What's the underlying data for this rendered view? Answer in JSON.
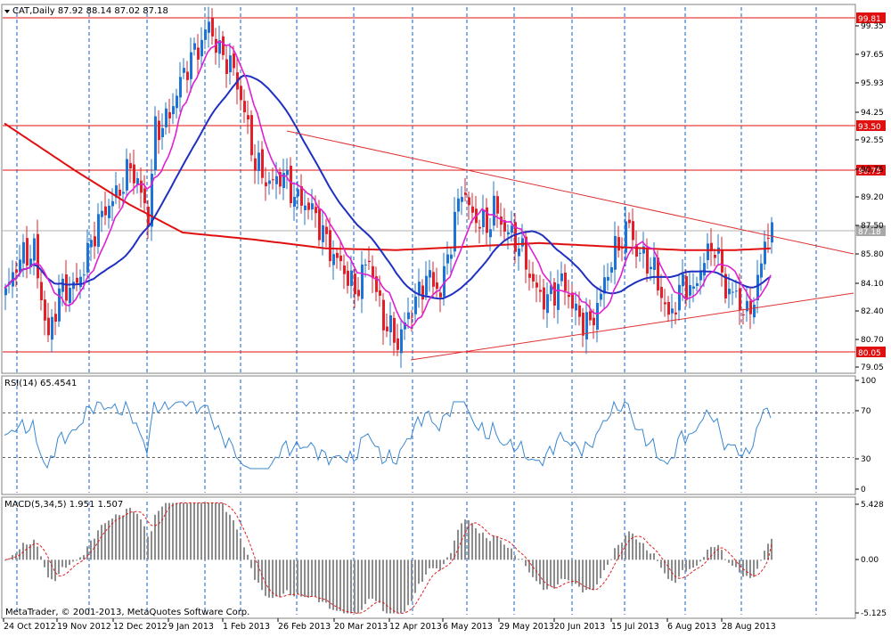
{
  "main": {
    "header": "CAT,Daily  87.92 88.14 87.02 87.18",
    "copyright": "MetaTrader, © 2001-2013, MetaQuotes Software Corp."
  },
  "colors": {
    "bull": "#1e74d6",
    "bear": "#e3202a",
    "ma_fast": "#e020d0",
    "ma_mid": "#2030c0",
    "ma_slow": "#e01010",
    "levels": "#e01010",
    "trend": "#e03030",
    "rsi": "#3a88d0",
    "macd_hist": "#8c8c8c",
    "macd_signal": "#e02020",
    "grid": "#1a5fc4"
  },
  "x_axis": {
    "ticks": [
      "24 Oct 2012",
      "19 Nov 2012",
      "12 Dec 2012",
      "9 Jan 2013",
      "1 Feb 2013",
      "26 Feb 2013",
      "20 Mar 2013",
      "12 Apr 2013",
      "6 May 2013",
      "29 May 2013",
      "20 Jun 2013",
      "15 Jul 2013",
      "6 Aug 2013",
      "28 Aug 2013"
    ]
  },
  "chart_data": [
    {
      "type": "candlestick",
      "title": "CAT,Daily  87.92 88.14 87.02 87.18",
      "ylim": [
        79.05,
        99.81
      ],
      "y_ticks": [
        "99.35",
        "97.65",
        "95.93",
        "94.25",
        "92.55",
        "90.75",
        "89.20",
        "87.50",
        "85.80",
        "84.10",
        "82.40",
        "80.70",
        "79.05"
      ],
      "hlines": [
        {
          "label": "99.81",
          "value": 99.81
        },
        {
          "label": "93.50",
          "value": 93.5
        },
        {
          "label": "90.75",
          "value": 90.75
        },
        {
          "label": "80.05",
          "value": 80.05
        }
      ],
      "current_price": {
        "label": "87.18",
        "value": 87.18
      },
      "trendlines": [
        {
          "from": [
            "26 Feb 2013",
            93.05
          ],
          "to": [
            "end",
            85.7
          ]
        },
        {
          "from": [
            "15 Apr 2013",
            79.3
          ],
          "to": [
            "end",
            83.2
          ]
        }
      ],
      "moving_averages": [
        "fast (magenta)",
        "mid (blue)",
        "slow (red)"
      ],
      "grid": true
    },
    {
      "type": "line",
      "title": "RSI(14) 65.4541",
      "ylim": [
        0,
        100
      ],
      "y_ticks": [
        "100",
        "70",
        "30",
        "0"
      ],
      "levels": [
        70,
        30
      ],
      "last": 65.4541
    },
    {
      "type": "bar",
      "title": "MACD(5,34,5) 1.951 1.507",
      "ylim": [
        -5.125,
        5.428
      ],
      "y_ticks": [
        "5.428",
        "0.00",
        "-5.125"
      ],
      "last_macd": 1.951,
      "last_signal": 1.507
    }
  ]
}
